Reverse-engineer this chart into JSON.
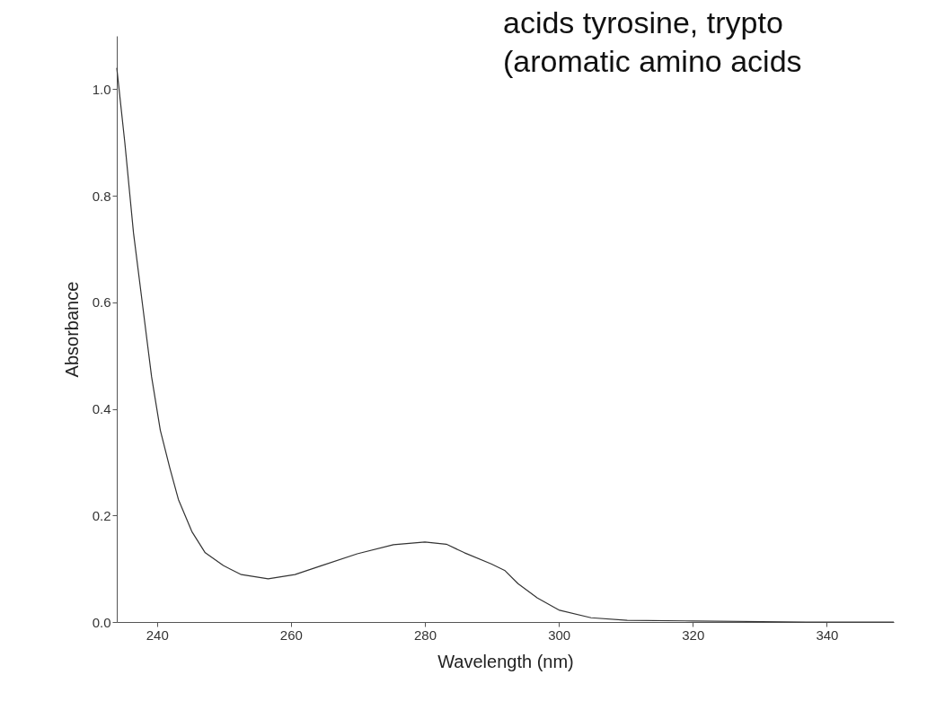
{
  "chart_data": {
    "type": "line",
    "xlabel": "Wavelength (nm)",
    "ylabel": "Absorbance",
    "annotations": [
      "acids tyrosine, trypto",
      "(aromatic amino acids"
    ],
    "xlim": [
      234,
      350
    ],
    "ylim": [
      0,
      1.1
    ],
    "xticks": [
      240,
      260,
      280,
      300,
      320,
      340
    ],
    "yticks": [
      {
        "value": 0,
        "label": "0.0"
      },
      0.2,
      0.4,
      0.6,
      0.8,
      {
        "value": 1,
        "label": "1.0"
      }
    ],
    "grid": false,
    "series": [
      {
        "color": "#333333",
        "x": [
          234,
          235.2,
          236.5,
          237.9,
          239.2,
          240.5,
          241.9,
          243.2,
          245.2,
          247.2,
          249.9,
          252.6,
          256.6,
          260.6,
          264.6,
          269.9,
          275.3,
          280,
          283.2,
          285.9,
          289.9,
          291.9,
          293.9,
          296.8,
          300.1,
          304.8,
          310.2,
          320,
          337,
          350
        ],
        "values": [
          1.04,
          0.9,
          0.73,
          0.59,
          0.46,
          0.36,
          0.29,
          0.23,
          0.17,
          0.13,
          0.106,
          0.089,
          0.081,
          0.089,
          0.106,
          0.128,
          0.145,
          0.15,
          0.146,
          0.13,
          0.109,
          0.097,
          0.072,
          0.045,
          0.022,
          0.008,
          0.003,
          0.002,
          0.0,
          0.0
        ]
      }
    ]
  }
}
